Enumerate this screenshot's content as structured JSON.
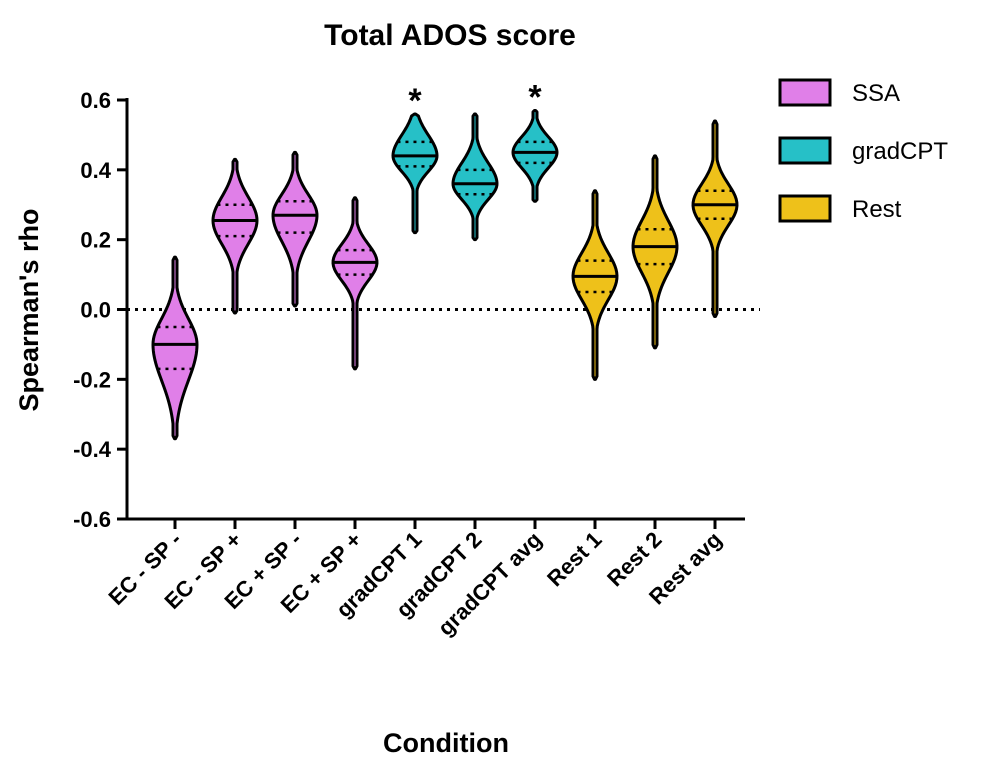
{
  "chart_data": {
    "type": "violin",
    "title": "Total ADOS score",
    "x_label": "Condition",
    "y_label": "Spearman's rho",
    "categories": [
      "EC - SP -",
      "EC - SP +",
      "EC + SP -",
      "EC + SP +",
      "gradCPT 1",
      "gradCPT 2",
      "gradCPT avg",
      "Rest 1",
      "Rest 2",
      "Rest avg"
    ],
    "series": [
      {
        "name": "SSA",
        "color": "#e07fe8",
        "values": [
          {
            "min": -0.37,
            "q1": -0.17,
            "median": -0.1,
            "q3": -0.05,
            "max": 0.15
          },
          {
            "min": -0.01,
            "q1": 0.21,
            "median": 0.255,
            "q3": 0.3,
            "max": 0.43
          },
          {
            "min": 0.01,
            "q1": 0.22,
            "median": 0.27,
            "q3": 0.31,
            "max": 0.45
          },
          {
            "min": -0.17,
            "q1": 0.1,
            "median": 0.135,
            "q3": 0.17,
            "max": 0.32
          },
          null,
          null,
          null,
          null,
          null,
          null
        ]
      },
      {
        "name": "gradCPT",
        "color": "#26c0c7",
        "values": [
          null,
          null,
          null,
          null,
          {
            "min": 0.22,
            "q1": 0.41,
            "median": 0.44,
            "q3": 0.48,
            "max": 0.56
          },
          {
            "min": 0.2,
            "q1": 0.33,
            "median": 0.36,
            "q3": 0.4,
            "max": 0.56
          },
          {
            "min": 0.31,
            "q1": 0.42,
            "median": 0.45,
            "q3": 0.48,
            "max": 0.57
          },
          null,
          null,
          null
        ]
      },
      {
        "name": "Rest",
        "color": "#eec11a",
        "values": [
          null,
          null,
          null,
          null,
          null,
          null,
          null,
          {
            "min": -0.2,
            "q1": 0.05,
            "median": 0.095,
            "q3": 0.14,
            "max": 0.34
          },
          {
            "min": -0.11,
            "q1": 0.13,
            "median": 0.18,
            "q3": 0.23,
            "max": 0.44
          },
          {
            "min": -0.02,
            "q1": 0.26,
            "median": 0.3,
            "q3": 0.34,
            "max": 0.54
          }
        ]
      }
    ],
    "annotations": [
      {
        "text": "*",
        "category": "gradCPT 1"
      },
      {
        "text": "*",
        "category": "gradCPT avg"
      }
    ],
    "reference_line": 0,
    "ylim": [
      -0.6,
      0.6
    ],
    "yticks": [
      -0.6,
      -0.4,
      -0.2,
      {
        "value": 0,
        "label": "0.0"
      },
      0.2,
      0.4,
      0.6
    ],
    "legend": "right"
  }
}
